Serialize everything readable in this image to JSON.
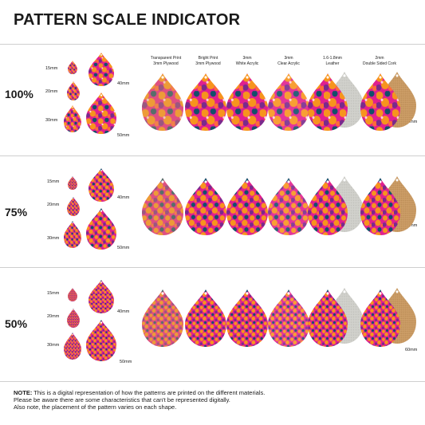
{
  "title": "PATTERN SCALE INDICATOR",
  "materials": [
    "Transparent Print\n3mm Plywood",
    "Bright Print\n3mm Plywood",
    "3mm\nWhite Acrylic",
    "3mm\nClear Acrylic",
    "1.6-1.8mm\nLeather",
    "2mm\nDouble Sided Cork"
  ],
  "sizes": [
    "15mm",
    "20mm",
    "30mm",
    "40mm",
    "50mm",
    "60mm"
  ],
  "rows": [
    {
      "scale": "100%"
    },
    {
      "scale": "75%"
    },
    {
      "scale": "50%"
    }
  ],
  "note": {
    "label": "NOTE:",
    "line1": " This is a digital representation of how the patterns are printed on the different materials.",
    "line2": "Please be aware there are some characteristics that can't be represented digitally.",
    "line3": "Also note, the placement of the pattern varies on each shape."
  },
  "colors": {
    "pink": "#e0208f",
    "orange": "#f7941d",
    "teal": "#12506a",
    "purple": "#7a2a8c",
    "leather": "#c9c9c4",
    "cork": "#c79a66"
  }
}
